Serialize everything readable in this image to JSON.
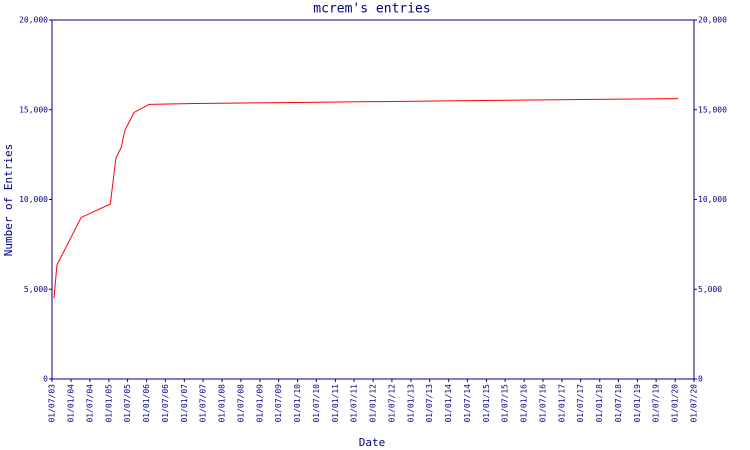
{
  "chart_data": {
    "type": "line",
    "title": "mcrem's entries",
    "x_label": "Date",
    "y_label": "Number of Entries",
    "xlim": [
      "2003-07-01",
      "2020-07-01"
    ],
    "xticks": [
      {
        "value": "2003-07-01",
        "label": "01/07/03"
      },
      {
        "value": "2004-01-01",
        "label": "01/01/04"
      },
      {
        "value": "2004-07-01",
        "label": "01/07/04"
      },
      {
        "value": "2005-01-01",
        "label": "01/01/05"
      },
      {
        "value": "2005-07-01",
        "label": "01/07/05"
      },
      {
        "value": "2006-01-01",
        "label": "01/01/06"
      },
      {
        "value": "2006-07-01",
        "label": "01/07/06"
      },
      {
        "value": "2007-01-01",
        "label": "01/01/07"
      },
      {
        "value": "2007-07-01",
        "label": "01/07/07"
      },
      {
        "value": "2008-01-01",
        "label": "01/01/08"
      },
      {
        "value": "2008-07-01",
        "label": "01/07/08"
      },
      {
        "value": "2009-01-01",
        "label": "01/01/09"
      },
      {
        "value": "2009-07-01",
        "label": "01/07/09"
      },
      {
        "value": "2010-01-01",
        "label": "01/01/10"
      },
      {
        "value": "2010-07-01",
        "label": "01/07/10"
      },
      {
        "value": "2011-01-01",
        "label": "01/01/11"
      },
      {
        "value": "2011-07-01",
        "label": "01/07/11"
      },
      {
        "value": "2012-01-01",
        "label": "01/01/12"
      },
      {
        "value": "2012-07-01",
        "label": "01/07/12"
      },
      {
        "value": "2013-01-01",
        "label": "01/01/13"
      },
      {
        "value": "2013-07-01",
        "label": "01/07/13"
      },
      {
        "value": "2014-01-01",
        "label": "01/01/14"
      },
      {
        "value": "2014-07-01",
        "label": "01/07/14"
      },
      {
        "value": "2015-01-01",
        "label": "01/01/15"
      },
      {
        "value": "2015-07-01",
        "label": "01/07/15"
      },
      {
        "value": "2016-01-01",
        "label": "01/01/16"
      },
      {
        "value": "2016-07-01",
        "label": "01/07/16"
      },
      {
        "value": "2017-01-01",
        "label": "01/01/17"
      },
      {
        "value": "2017-07-01",
        "label": "01/07/17"
      },
      {
        "value": "2018-01-01",
        "label": "01/01/18"
      },
      {
        "value": "2018-07-01",
        "label": "01/07/18"
      },
      {
        "value": "2019-01-01",
        "label": "01/01/19"
      },
      {
        "value": "2019-07-01",
        "label": "01/07/19"
      },
      {
        "value": "2020-01-01",
        "label": "01/01/20"
      },
      {
        "value": "2020-07-01",
        "label": "01/07/20"
      }
    ],
    "ylim": [
      0,
      20000
    ],
    "yticks": [
      0,
      {
        "value": 5000,
        "label": "5,000"
      },
      {
        "value": 10000,
        "label": "10,000"
      },
      {
        "value": 15000,
        "label": "15,000"
      },
      {
        "value": 20000,
        "label": "20,000"
      }
    ],
    "axis_color": "#000080",
    "series": [
      {
        "color": "#ff0000",
        "x": [
          "2003-07-20",
          "2003-08-18",
          "2004-04-08",
          "2005-01-15",
          "2005-03-10",
          "2005-04-30",
          "2005-06-05",
          "2005-09-01",
          "2006-01-25",
          "2007-04-15",
          "2009-09-01",
          "2011-12-20",
          "2014-04-20",
          "2016-07-20",
          "2018-12-10",
          "2020-01-30"
        ],
        "values": [
          4500,
          6350,
          9000,
          9750,
          12300,
          12900,
          13850,
          14850,
          15300,
          15350,
          15400,
          15450,
          15500,
          15550,
          15600,
          15620
        ]
      }
    ]
  }
}
